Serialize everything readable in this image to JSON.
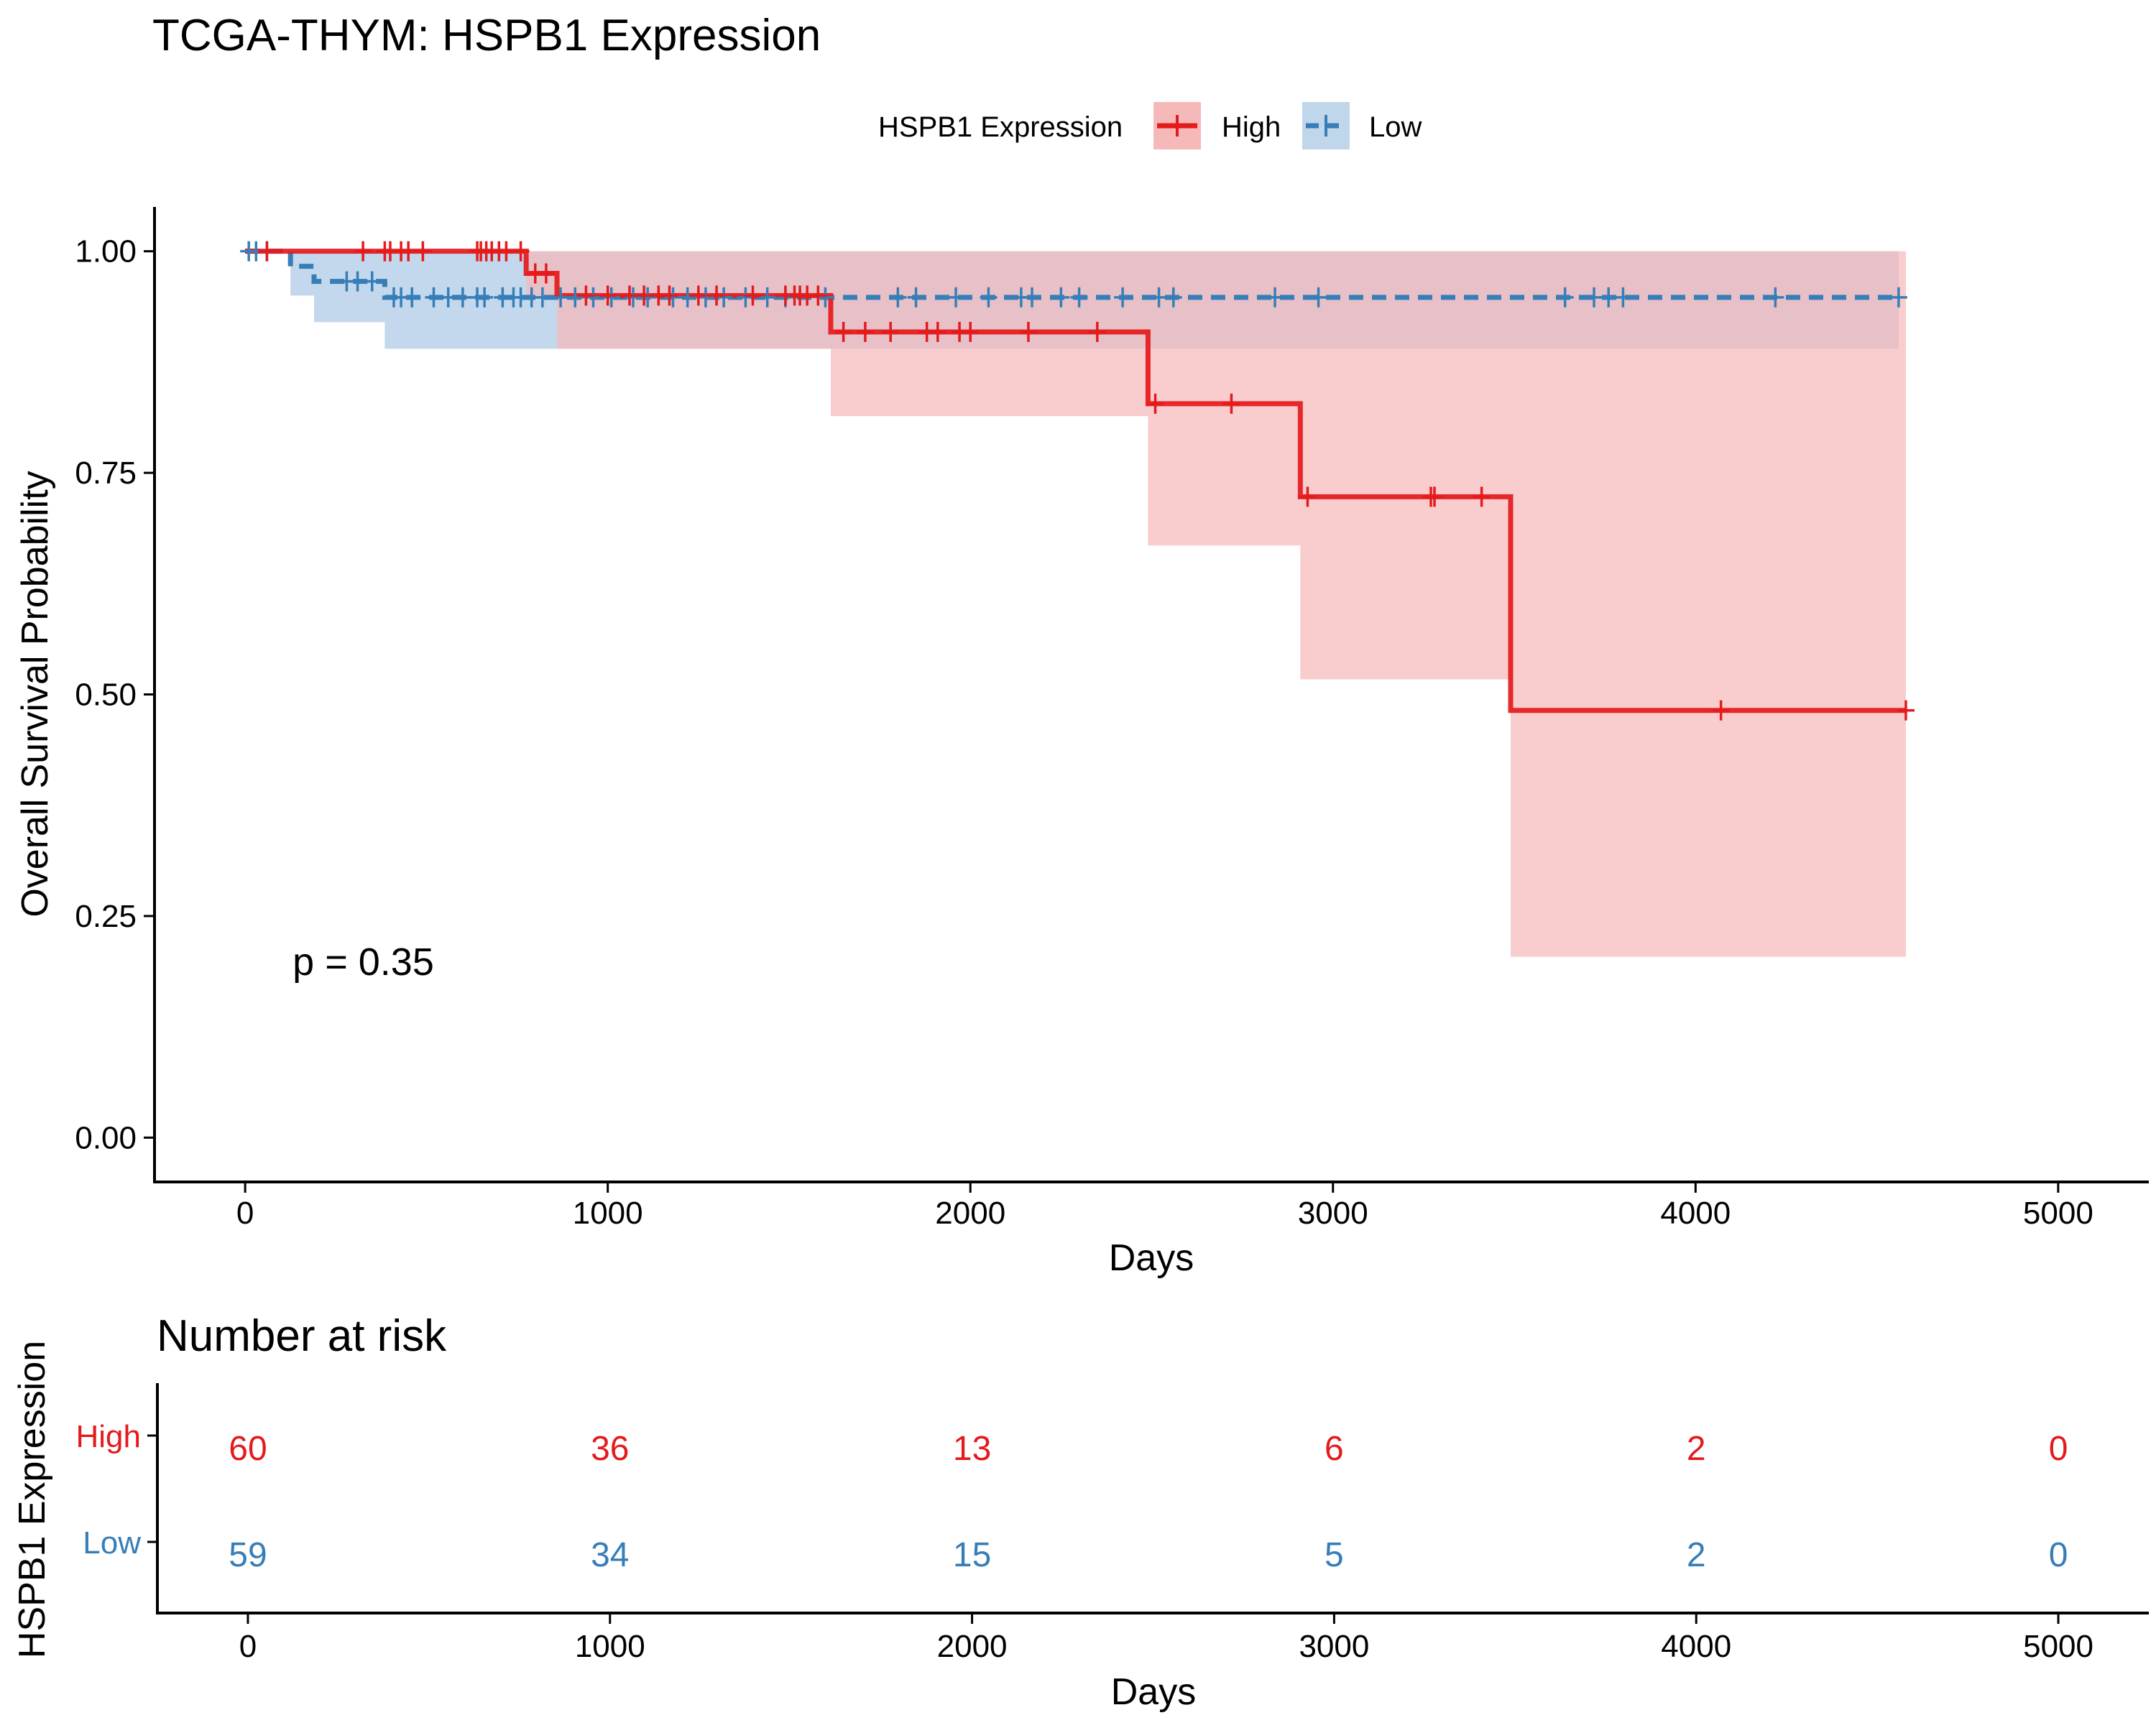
{
  "chart_data": [
    {
      "type": "line",
      "subtype": "kaplan-meier",
      "title": "TCGA-THYM: HSPB1 Expression",
      "xlabel": "Days",
      "ylabel": "Overall Survival Probability",
      "xlim": [
        -250,
        5250
      ],
      "ylim": [
        -0.05,
        1.05
      ],
      "x_ticks": [
        0,
        1000,
        2000,
        3000,
        4000,
        5000
      ],
      "x_tick_labels": [
        "0",
        "1000",
        "2000",
        "3000",
        "4000",
        "5000"
      ],
      "y_ticks": [
        0,
        0.25,
        0.5,
        0.75,
        1.0
      ],
      "y_tick_labels": [
        "0.00",
        "0.25",
        "0.50",
        "0.75",
        "1.00"
      ],
      "grid": false,
      "legend": {
        "title": "HSPB1 Expression",
        "placement": "top"
      },
      "annotation": "p = 0.35",
      "annotation_pos": {
        "x": 230,
        "y": 0.198
      },
      "series": [
        {
          "name": "High",
          "color": "#E41A1C",
          "fill": "#F6B9BA",
          "dash": false,
          "steps": [
            [
              0,
              1.0
            ],
            [
              775,
              0.975
            ],
            [
              860,
              0.95
            ],
            [
              1615,
              0.909
            ],
            [
              2490,
              0.828
            ],
            [
              2910,
              0.723
            ],
            [
              3490,
              0.482
            ],
            [
              4580,
              0.482
            ]
          ],
          "ci": [
            [
              0,
              1.0,
              1.0
            ],
            [
              775,
              0.95,
              1.0
            ],
            [
              860,
              0.89,
              1.0
            ],
            [
              1615,
              0.814,
              1.0
            ],
            [
              2490,
              0.668,
              1.0
            ],
            [
              2910,
              0.517,
              1.0
            ],
            [
              3490,
              0.204,
              1.0
            ],
            [
              4580,
              0.204,
              1.0
            ]
          ],
          "censors": [
            [
              60,
              1.0
            ],
            [
              325,
              1.0
            ],
            [
              385,
              1.0
            ],
            [
              400,
              1.0
            ],
            [
              430,
              1.0
            ],
            [
              450,
              1.0
            ],
            [
              490,
              1.0
            ],
            [
              640,
              1.0
            ],
            [
              650,
              1.0
            ],
            [
              665,
              1.0
            ],
            [
              680,
              1.0
            ],
            [
              700,
              1.0
            ],
            [
              720,
              1.0
            ],
            [
              760,
              1.0
            ],
            [
              800,
              0.975
            ],
            [
              830,
              0.975
            ],
            [
              940,
              0.95
            ],
            [
              1000,
              0.95
            ],
            [
              1060,
              0.95
            ],
            [
              1100,
              0.95
            ],
            [
              1140,
              0.95
            ],
            [
              1170,
              0.95
            ],
            [
              1250,
              0.95
            ],
            [
              1300,
              0.95
            ],
            [
              1400,
              0.95
            ],
            [
              1490,
              0.95
            ],
            [
              1515,
              0.95
            ],
            [
              1530,
              0.95
            ],
            [
              1550,
              0.95
            ],
            [
              1580,
              0.95
            ],
            [
              1650,
              0.909
            ],
            [
              1710,
              0.909
            ],
            [
              1780,
              0.909
            ],
            [
              1880,
              0.909
            ],
            [
              1910,
              0.909
            ],
            [
              1970,
              0.909
            ],
            [
              2000,
              0.909
            ],
            [
              2160,
              0.909
            ],
            [
              2350,
              0.909
            ],
            [
              2510,
              0.828
            ],
            [
              2720,
              0.828
            ],
            [
              2930,
              0.723
            ],
            [
              3270,
              0.723
            ],
            [
              3280,
              0.723
            ],
            [
              3410,
              0.723
            ],
            [
              4070,
              0.482
            ],
            [
              4580,
              0.482
            ]
          ]
        },
        {
          "name": "Low",
          "color": "#377EB8",
          "fill": "#C0D6EB",
          "dash": true,
          "steps": [
            [
              0,
              1.0
            ],
            [
              125,
              0.983
            ],
            [
              190,
              0.966
            ],
            [
              385,
              0.948
            ],
            [
              4560,
              0.948
            ]
          ],
          "ci": [
            [
              0,
              1.0,
              1.0
            ],
            [
              125,
              0.95,
              1.0
            ],
            [
              190,
              0.92,
              1.0
            ],
            [
              385,
              0.89,
              1.0
            ],
            [
              4560,
              0.89,
              1.0
            ]
          ],
          "censors": [
            [
              10,
              1.0
            ],
            [
              30,
              1.0
            ],
            [
              60,
              1.0
            ],
            [
              280,
              0.966
            ],
            [
              310,
              0.966
            ],
            [
              350,
              0.966
            ],
            [
              410,
              0.948
            ],
            [
              430,
              0.948
            ],
            [
              460,
              0.948
            ],
            [
              520,
              0.948
            ],
            [
              560,
              0.948
            ],
            [
              600,
              0.948
            ],
            [
              640,
              0.948
            ],
            [
              660,
              0.948
            ],
            [
              710,
              0.948
            ],
            [
              740,
              0.948
            ],
            [
              760,
              0.948
            ],
            [
              790,
              0.948
            ],
            [
              820,
              0.948
            ],
            [
              870,
              0.948
            ],
            [
              910,
              0.948
            ],
            [
              960,
              0.948
            ],
            [
              1010,
              0.948
            ],
            [
              1070,
              0.948
            ],
            [
              1110,
              0.948
            ],
            [
              1180,
              0.948
            ],
            [
              1220,
              0.948
            ],
            [
              1270,
              0.948
            ],
            [
              1320,
              0.948
            ],
            [
              1380,
              0.948
            ],
            [
              1440,
              0.948
            ],
            [
              1490,
              0.948
            ],
            [
              1600,
              0.948
            ],
            [
              1800,
              0.948
            ],
            [
              1850,
              0.948
            ],
            [
              1960,
              0.948
            ],
            [
              2050,
              0.948
            ],
            [
              2140,
              0.948
            ],
            [
              2170,
              0.948
            ],
            [
              2250,
              0.948
            ],
            [
              2300,
              0.948
            ],
            [
              2420,
              0.948
            ],
            [
              2520,
              0.948
            ],
            [
              2560,
              0.948
            ],
            [
              2840,
              0.948
            ],
            [
              2960,
              0.948
            ],
            [
              3640,
              0.948
            ],
            [
              3720,
              0.948
            ],
            [
              3760,
              0.948
            ],
            [
              3800,
              0.948
            ],
            [
              4220,
              0.948
            ],
            [
              4560,
              0.948
            ]
          ]
        }
      ]
    },
    {
      "type": "table",
      "title": "Number at risk",
      "xlabel": "Days",
      "ylabel": "HSPB1 Expression",
      "xlim": [
        -250,
        5250
      ],
      "x_ticks": [
        0,
        1000,
        2000,
        3000,
        4000,
        5000
      ],
      "x_tick_labels": [
        "0",
        "1000",
        "2000",
        "3000",
        "4000",
        "5000"
      ],
      "rows": [
        {
          "name": "High",
          "color": "#E41A1C",
          "values": [
            "60",
            "36",
            "13",
            "6",
            "2",
            "0"
          ]
        },
        {
          "name": "Low",
          "color": "#377EB8",
          "values": [
            "59",
            "34",
            "15",
            "5",
            "2",
            "0"
          ]
        }
      ]
    }
  ]
}
